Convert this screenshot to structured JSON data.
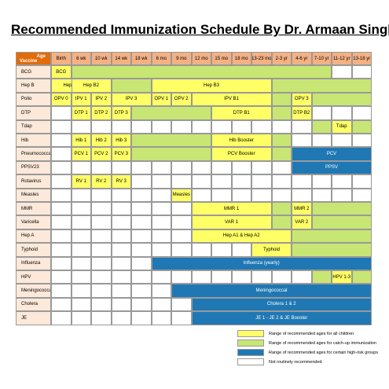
{
  "title": "Recommended Immunization Schedule By Dr. Armaan Singh",
  "header": {
    "age_label": "Age",
    "vaccine_label": "Vaccine",
    "columns": [
      "Birth",
      "6 wk",
      "10 wk",
      "14 wk",
      "18 wk",
      "6 mo",
      "9 mo",
      "12 mo",
      "15 mo",
      "18 mo",
      "13-23 mo",
      "2-3 yr",
      "4-6 yr",
      "7-10 yr",
      "11-12 yr",
      "13-18 yr"
    ]
  },
  "vaccines": [
    "BCG",
    "Hep B",
    "Polio",
    "DTP",
    "Tdap",
    "Hib",
    "Pneumococcal",
    "PPSV23",
    "Rotavirus",
    "Measles",
    "MMR",
    "Varicella",
    "Hep A",
    "Typhoid",
    "Influenza",
    "HPV",
    "Meningococcal",
    "Cholera",
    "JE"
  ],
  "colors": {
    "yellow": "#ffff66",
    "green": "#c8e673",
    "blue": "#1f78b4",
    "white": "#ffffff",
    "header": "#f4b183",
    "vaccine_column": "#fde9d9",
    "corner": "#e26b0a"
  },
  "bars": [
    {
      "row": 0,
      "from": 0,
      "to": 0,
      "color": "yellow",
      "text": "BCG"
    },
    {
      "row": 0,
      "from": 1,
      "to": 13,
      "color": "green",
      "text": ""
    },
    {
      "row": 1,
      "from": 0,
      "to": 1,
      "color": "yellow",
      "text": "Hep B1"
    },
    {
      "row": 1,
      "from": 1,
      "to": 2,
      "color": "yellow",
      "text": "Hep B2"
    },
    {
      "row": 1,
      "from": 3,
      "to": 4,
      "color": "green",
      "text": ""
    },
    {
      "row": 1,
      "from": 5,
      "to": 10,
      "color": "yellow",
      "text": "Hep B3"
    },
    {
      "row": 1,
      "from": 11,
      "to": 15,
      "color": "green",
      "text": ""
    },
    {
      "row": 2,
      "from": 0,
      "to": 0,
      "color": "yellow",
      "text": "OPV 0"
    },
    {
      "row": 2,
      "from": 1,
      "to": 1,
      "color": "yellow",
      "text": "IPV 1"
    },
    {
      "row": 2,
      "from": 2,
      "to": 2,
      "color": "yellow",
      "text": "IPV 2"
    },
    {
      "row": 2,
      "from": 3,
      "to": 4,
      "color": "yellow",
      "text": "IPV 3"
    },
    {
      "row": 2,
      "from": 5,
      "to": 5,
      "color": "yellow",
      "text": "OPV 1"
    },
    {
      "row": 2,
      "from": 6,
      "to": 6,
      "color": "yellow",
      "text": "OPV 2"
    },
    {
      "row": 2,
      "from": 7,
      "to": 10,
      "color": "yellow",
      "text": "IPV B1"
    },
    {
      "row": 2,
      "from": 11,
      "to": 11,
      "color": "green",
      "text": ""
    },
    {
      "row": 2,
      "from": 12,
      "to": 12,
      "color": "yellow",
      "text": "OPV 3"
    },
    {
      "row": 2,
      "from": 13,
      "to": 15,
      "color": "green",
      "text": ""
    },
    {
      "row": 3,
      "from": 1,
      "to": 1,
      "color": "yellow",
      "text": "DTP 1"
    },
    {
      "row": 3,
      "from": 2,
      "to": 2,
      "color": "yellow",
      "text": "DTP 2"
    },
    {
      "row": 3,
      "from": 3,
      "to": 3,
      "color": "yellow",
      "text": "DTP 3"
    },
    {
      "row": 3,
      "from": 4,
      "to": 7,
      "color": "green",
      "text": ""
    },
    {
      "row": 3,
      "from": 8,
      "to": 10,
      "color": "yellow",
      "text": "DTP B1"
    },
    {
      "row": 3,
      "from": 11,
      "to": 11,
      "color": "green",
      "text": ""
    },
    {
      "row": 3,
      "from": 12,
      "to": 12,
      "color": "yellow",
      "text": "DTP B2"
    },
    {
      "row": 4,
      "from": 13,
      "to": 13,
      "color": "green",
      "text": ""
    },
    {
      "row": 4,
      "from": 14,
      "to": 14,
      "color": "yellow",
      "text": "Tdap"
    },
    {
      "row": 4,
      "from": 15,
      "to": 15,
      "color": "green",
      "text": ""
    },
    {
      "row": 5,
      "from": 1,
      "to": 1,
      "color": "yellow",
      "text": "Hib 1"
    },
    {
      "row": 5,
      "from": 2,
      "to": 2,
      "color": "yellow",
      "text": "Hib 2"
    },
    {
      "row": 5,
      "from": 3,
      "to": 3,
      "color": "yellow",
      "text": "Hib 3"
    },
    {
      "row": 5,
      "from": 4,
      "to": 7,
      "color": "green",
      "text": ""
    },
    {
      "row": 5,
      "from": 8,
      "to": 10,
      "color": "yellow",
      "text": "Hib Booster"
    },
    {
      "row": 5,
      "from": 11,
      "to": 11,
      "color": "green",
      "text": ""
    },
    {
      "row": 6,
      "from": 1,
      "to": 1,
      "color": "yellow",
      "text": "PCV 1"
    },
    {
      "row": 6,
      "from": 2,
      "to": 2,
      "color": "yellow",
      "text": "PCV 2"
    },
    {
      "row": 6,
      "from": 3,
      "to": 3,
      "color": "yellow",
      "text": "PCV 3"
    },
    {
      "row": 6,
      "from": 4,
      "to": 7,
      "color": "green",
      "text": ""
    },
    {
      "row": 6,
      "from": 8,
      "to": 10,
      "color": "yellow",
      "text": "PCV Booster"
    },
    {
      "row": 6,
      "from": 11,
      "to": 11,
      "color": "green",
      "text": ""
    },
    {
      "row": 6,
      "from": 12,
      "to": 15,
      "color": "blue",
      "text": "PCV"
    },
    {
      "row": 7,
      "from": 12,
      "to": 15,
      "color": "blue",
      "text": "PPSV"
    },
    {
      "row": 8,
      "from": 1,
      "to": 1,
      "color": "yellow",
      "text": "RV 1"
    },
    {
      "row": 8,
      "from": 2,
      "to": 2,
      "color": "yellow",
      "text": "RV 2"
    },
    {
      "row": 8,
      "from": 3,
      "to": 3,
      "color": "yellow",
      "text": "RV 3"
    },
    {
      "row": 9,
      "from": 6,
      "to": 6,
      "color": "yellow",
      "text": "Measles"
    },
    {
      "row": 10,
      "from": 7,
      "to": 10,
      "color": "yellow",
      "text": "MMR 1"
    },
    {
      "row": 10,
      "from": 11,
      "to": 11,
      "color": "green",
      "text": ""
    },
    {
      "row": 10,
      "from": 12,
      "to": 12,
      "color": "yellow",
      "text": "MMR 2"
    },
    {
      "row": 10,
      "from": 13,
      "to": 15,
      "color": "green",
      "text": ""
    },
    {
      "row": 11,
      "from": 7,
      "to": 10,
      "color": "yellow",
      "text": "VAR 1"
    },
    {
      "row": 11,
      "from": 11,
      "to": 11,
      "color": "green",
      "text": ""
    },
    {
      "row": 11,
      "from": 12,
      "to": 12,
      "color": "yellow",
      "text": "VAR 2"
    },
    {
      "row": 11,
      "from": 13,
      "to": 15,
      "color": "green",
      "text": ""
    },
    {
      "row": 12,
      "from": 7,
      "to": 11,
      "color": "yellow",
      "text": "Hep A1 & Hep A2"
    },
    {
      "row": 12,
      "from": 12,
      "to": 15,
      "color": "green",
      "text": ""
    },
    {
      "row": 13,
      "from": 10,
      "to": 11,
      "color": "yellow",
      "text": "Typhoid"
    },
    {
      "row": 13,
      "from": 12,
      "to": 15,
      "color": "green",
      "text": ""
    },
    {
      "row": 14,
      "from": 5,
      "to": 15,
      "color": "blue",
      "text": "Influenza (yearly)"
    },
    {
      "row": 15,
      "from": 13,
      "to": 13,
      "color": "green",
      "text": ""
    },
    {
      "row": 15,
      "from": 14,
      "to": 14,
      "color": "yellow",
      "text": "HPV 1-3"
    },
    {
      "row": 15,
      "from": 15,
      "to": 15,
      "color": "green",
      "text": ""
    },
    {
      "row": 16,
      "from": 6,
      "to": 15,
      "color": "blue",
      "text": "Meningococcal"
    },
    {
      "row": 17,
      "from": 7,
      "to": 15,
      "color": "blue",
      "text": "Cholera 1 & 2"
    },
    {
      "row": 18,
      "from": 7,
      "to": 15,
      "color": "blue",
      "text": "JE 1 - JE 2 & JE Booster"
    }
  ],
  "legend": [
    {
      "color": "yellow",
      "text": "Range of recommended ages for all children"
    },
    {
      "color": "green",
      "text": "Range of recommended ages for catch-up immunization"
    },
    {
      "color": "blue",
      "text": "Range of recommended ages for certain high-risk groups"
    },
    {
      "color": "white",
      "text": "Not routinely recommended"
    }
  ]
}
